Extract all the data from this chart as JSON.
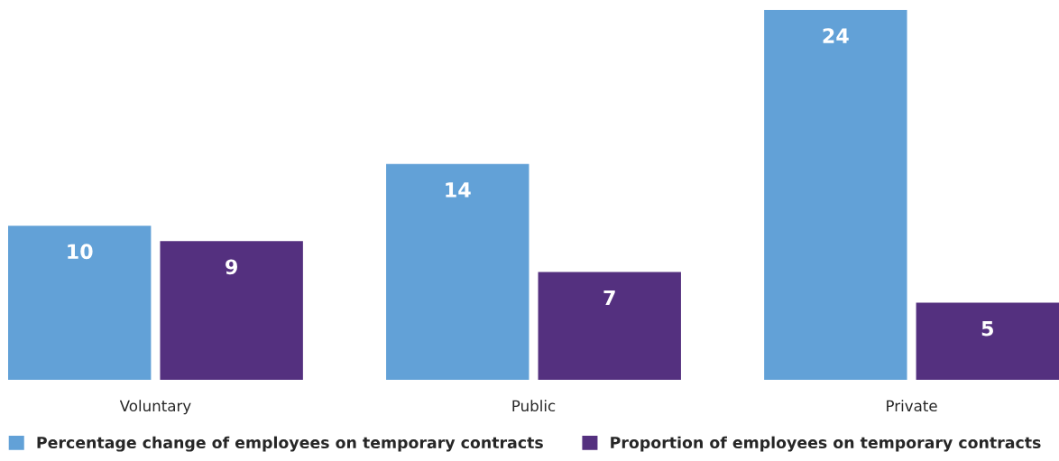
{
  "chart_data": {
    "type": "bar",
    "categories": [
      "Voluntary",
      "Public",
      "Private"
    ],
    "series": [
      {
        "name": "Percentage change of employees on temporary contracts",
        "color": "#62a1d7",
        "values": [
          10,
          14,
          24
        ]
      },
      {
        "name": "Proportion of employees on temporary contracts",
        "color": "#54307f",
        "values": [
          9,
          7,
          5
        ]
      }
    ],
    "data_labels": true,
    "grid": false,
    "legend": "bottom left"
  }
}
